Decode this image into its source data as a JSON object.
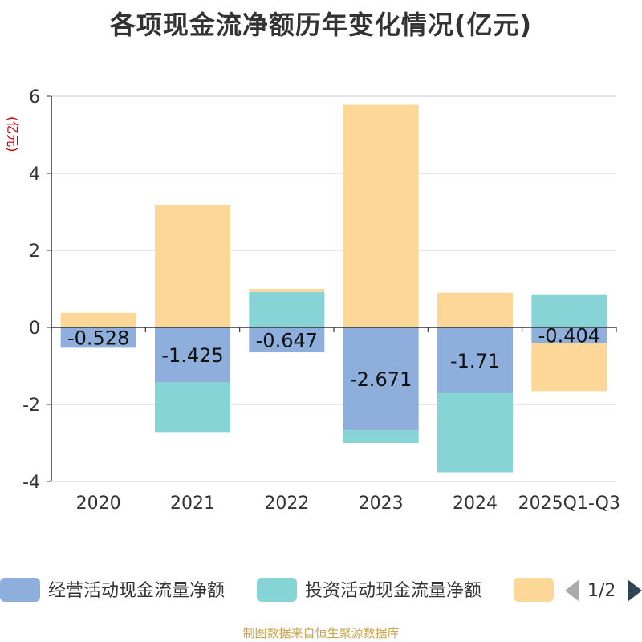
{
  "title": "各项现金流净额历年变化情况(亿元)",
  "source": "制图数据来自恒生聚源数据库",
  "pager": {
    "text": "1/2",
    "prev_icon": "triangle-left-icon",
    "next_icon": "triangle-right-icon"
  },
  "chart_data": {
    "type": "bar",
    "stacked": true,
    "ylabel": "(亿元)",
    "ylim": [
      -4,
      6
    ],
    "yticks": [
      -4,
      -2,
      0,
      2,
      4,
      6
    ],
    "yticks_text": [
      "-4",
      "-2",
      "0",
      "2",
      "4",
      "6"
    ],
    "grid": true,
    "legend_position": "bottom",
    "categories": [
      "2020",
      "2021",
      "2022",
      "2023",
      "2024",
      "2025Q1-Q3"
    ],
    "series": [
      {
        "name": "经营活动现金流量净额",
        "color": "#8eaedb",
        "values": [
          -0.528,
          -1.425,
          -0.647,
          -2.671,
          -1.71,
          -0.404
        ],
        "labels": [
          "-0.528",
          "-1.425",
          "-0.647",
          "-2.671",
          "-1.71",
          "-0.404"
        ]
      },
      {
        "name": "投资活动现金流量净额",
        "color": "#86d4d6",
        "values": [
          0.0,
          -1.29,
          0.92,
          -0.33,
          -2.05,
          0.86
        ]
      },
      {
        "name": "",
        "color": "#fdd798",
        "values": [
          0.38,
          3.18,
          0.08,
          5.78,
          0.9,
          -1.25
        ]
      }
    ]
  }
}
